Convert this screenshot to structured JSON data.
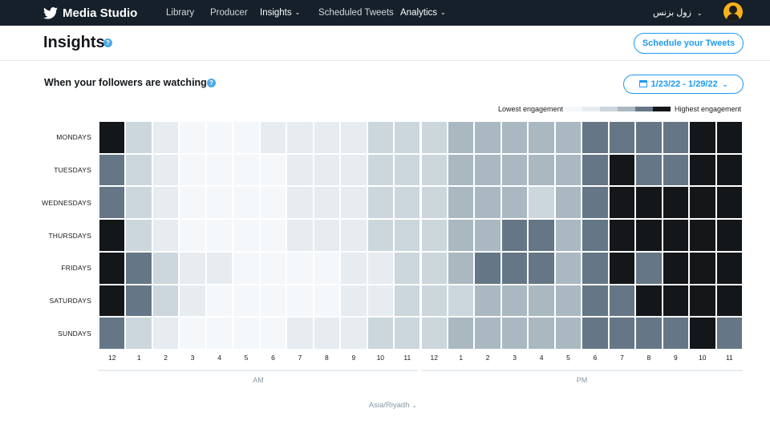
{
  "nav": {
    "brand": "Media Studio",
    "links": [
      {
        "label": "Library",
        "bold": false
      },
      {
        "label": "Producer",
        "bold": false
      },
      {
        "label": "Insights",
        "bold": true
      },
      {
        "label": "Scheduled Tweets",
        "bold": false
      },
      {
        "label": "Analytics",
        "bold": true
      }
    ],
    "user": "زول بزنس"
  },
  "page": {
    "title": "Insights",
    "schedule_button": "Schedule your Tweets"
  },
  "section": {
    "title": "When your followers are watching",
    "date_range": "1/23/22 - 1/29/22"
  },
  "legend": {
    "low": "Lowest engagement",
    "high": "Highest engagement",
    "colors": [
      "#f5f8fa",
      "#e6ecf0",
      "#ccd6dd",
      "#aab8c2",
      "#657786",
      "#14171a"
    ]
  },
  "heatmap": {
    "days": [
      "MONDAYS",
      "TUESDAYS",
      "WEDNESDAYS",
      "THURSDAYS",
      "FRIDAYS",
      "SATURDAYS",
      "SUNDAYS"
    ],
    "hours": [
      "12",
      "1",
      "2",
      "3",
      "4",
      "5",
      "6",
      "7",
      "8",
      "9",
      "10",
      "11",
      "12",
      "1",
      "2",
      "3",
      "4",
      "5",
      "6",
      "7",
      "8",
      "9",
      "10",
      "11"
    ],
    "periods": [
      "AM",
      "PM"
    ],
    "levels": [
      [
        5,
        2,
        1,
        0,
        0,
        0,
        1,
        1,
        1,
        1,
        2,
        2,
        2,
        3,
        3,
        3,
        3,
        3,
        4,
        4,
        4,
        4,
        5,
        5
      ],
      [
        4,
        2,
        1,
        0,
        0,
        0,
        0,
        1,
        1,
        1,
        2,
        2,
        2,
        3,
        3,
        3,
        3,
        3,
        4,
        5,
        4,
        4,
        5,
        5
      ],
      [
        4,
        2,
        1,
        0,
        0,
        0,
        0,
        1,
        1,
        1,
        2,
        2,
        2,
        3,
        3,
        3,
        2,
        3,
        4,
        5,
        5,
        5,
        5,
        5
      ],
      [
        5,
        2,
        1,
        0,
        0,
        0,
        0,
        1,
        1,
        1,
        2,
        2,
        2,
        3,
        3,
        4,
        4,
        3,
        4,
        5,
        5,
        5,
        5,
        5
      ],
      [
        5,
        4,
        2,
        1,
        1,
        0,
        0,
        0,
        0,
        1,
        1,
        2,
        2,
        3,
        4,
        4,
        4,
        3,
        4,
        5,
        4,
        5,
        5,
        5
      ],
      [
        5,
        4,
        2,
        1,
        0,
        0,
        0,
        0,
        0,
        1,
        1,
        2,
        2,
        2,
        3,
        3,
        3,
        3,
        4,
        4,
        5,
        5,
        5,
        5
      ],
      [
        4,
        2,
        1,
        0,
        0,
        0,
        0,
        1,
        1,
        1,
        2,
        2,
        2,
        3,
        3,
        3,
        3,
        3,
        4,
        4,
        4,
        4,
        5,
        4
      ]
    ]
  },
  "timezone": "Asia/Riyadh"
}
